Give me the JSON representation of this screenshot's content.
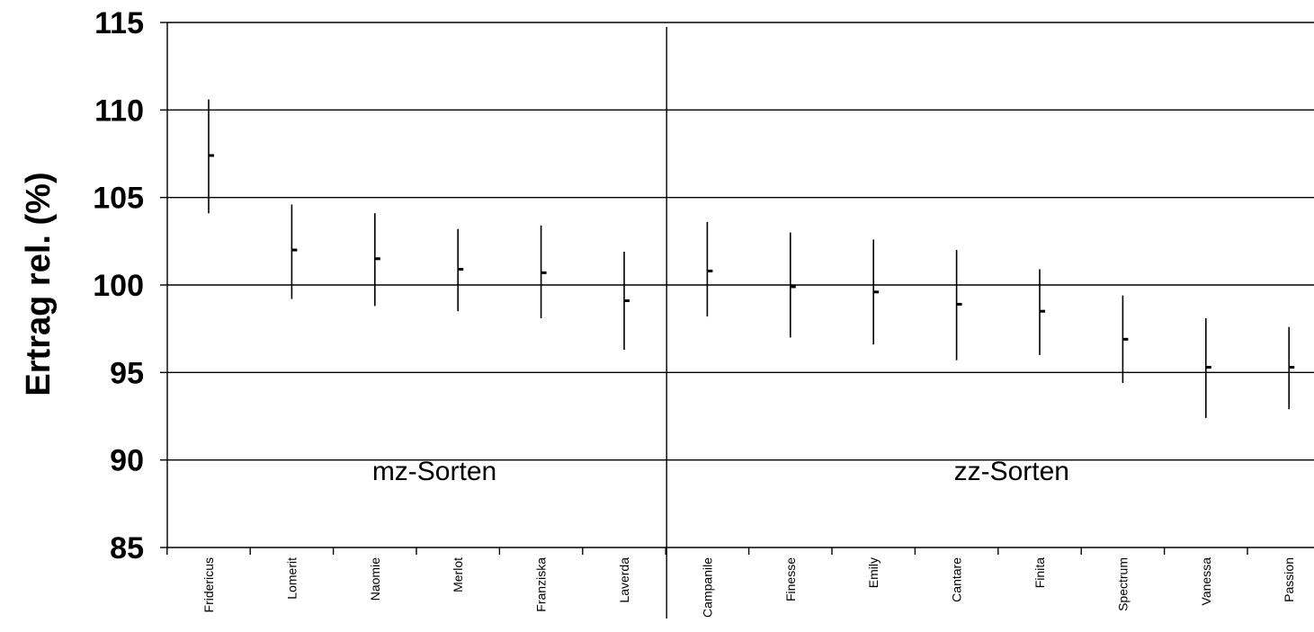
{
  "chart_data": {
    "type": "scatter",
    "subtype": "mean-with-range",
    "title": "",
    "xlabel": "",
    "ylabel": "Ertrag rel. (%)",
    "ylim": [
      85,
      115
    ],
    "yticks": [
      85,
      90,
      95,
      100,
      105,
      110,
      115
    ],
    "grid": "horizontal",
    "categories": [
      "Fridericus",
      "Lomerit",
      "Naomie",
      "Merlot",
      "Franziska",
      "Laverda",
      "Campanile",
      "Finesse",
      "Emily",
      "Cantare",
      "Finita",
      "Spectrum",
      "Vanessa",
      "Passion"
    ],
    "series": [
      {
        "mean": [
          107.4,
          102.0,
          101.5,
          100.9,
          100.7,
          99.1,
          100.8,
          99.9,
          99.6,
          98.9,
          98.5,
          96.9,
          95.3,
          95.3
        ],
        "low": [
          104.1,
          99.2,
          98.8,
          98.5,
          98.1,
          96.3,
          98.2,
          97.0,
          96.6,
          95.7,
          96.0,
          94.4,
          92.4,
          92.9
        ],
        "high": [
          110.6,
          104.6,
          104.1,
          103.2,
          103.4,
          101.9,
          103.6,
          103.0,
          102.6,
          102.0,
          100.9,
          99.4,
          98.1,
          97.6
        ]
      }
    ],
    "groups": [
      {
        "label": "mz-Sorten",
        "start": 0,
        "end": 5
      },
      {
        "label": "zz-Sorten",
        "start": 6,
        "end": 13
      }
    ]
  }
}
